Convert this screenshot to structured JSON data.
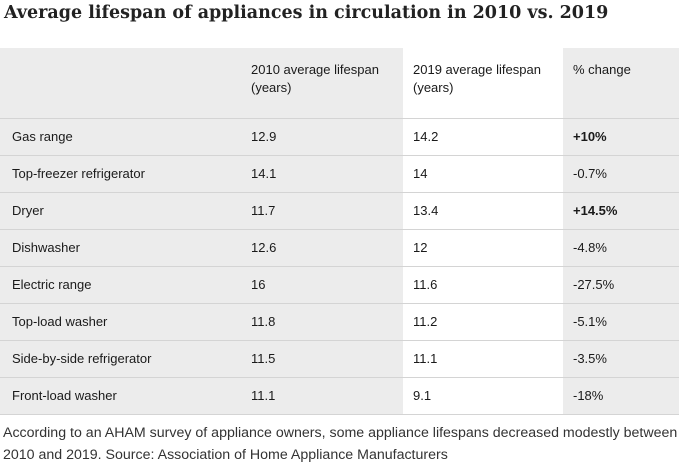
{
  "title": "Average lifespan of appliances in circulation in 2010 vs. 2019",
  "chart_data": {
    "type": "table",
    "title": "Average lifespan of appliances in circulation in 2010 vs. 2019",
    "columns": [
      "",
      "2010 average lifespan (years)",
      "2019 average lifespan (years)",
      "% change"
    ],
    "rows": [
      {
        "appliance": "Gas range",
        "y2010": "12.9",
        "y2019": "14.2",
        "change": "+10%",
        "positive": true
      },
      {
        "appliance": "Top-freezer refrigerator",
        "y2010": "14.1",
        "y2019": "14",
        "change": "-0.7%",
        "positive": false
      },
      {
        "appliance": "Dryer",
        "y2010": "11.7",
        "y2019": "13.4",
        "change": "+14.5%",
        "positive": true
      },
      {
        "appliance": "Dishwasher",
        "y2010": "12.6",
        "y2019": "12",
        "change": "-4.8%",
        "positive": false
      },
      {
        "appliance": "Electric range",
        "y2010": "16",
        "y2019": "11.6",
        "change": "-27.5%",
        "positive": false
      },
      {
        "appliance": "Top-load washer",
        "y2010": "11.8",
        "y2019": "11.2",
        "change": "-5.1%",
        "positive": false
      },
      {
        "appliance": "Side-by-side refrigerator",
        "y2010": "11.5",
        "y2019": "11.1",
        "change": "-3.5%",
        "positive": false
      },
      {
        "appliance": "Front-load washer",
        "y2010": "11.1",
        "y2019": "9.1",
        "change": "-18%",
        "positive": false
      }
    ]
  },
  "caption": "According to an AHAM survey of appliance owners, some appliance lifespans decreased modestly between 2010 and 2019. Source: Association of Home Appliance Manufacturers",
  "colors": {
    "shaded_column": "#ececec",
    "row_divider": "#d4d4d4",
    "text": "#1a1a1a"
  }
}
